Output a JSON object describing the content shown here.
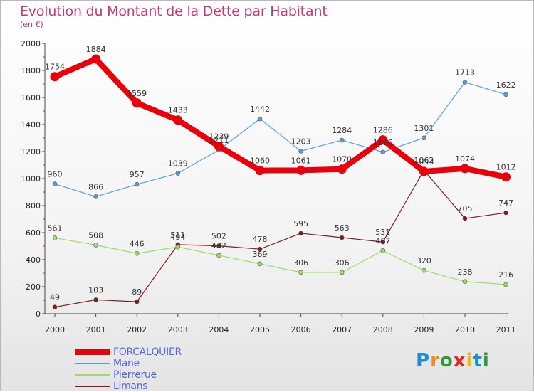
{
  "title": "Evolution du Montant de la Dette par Habitant",
  "unit": "(en €)",
  "logo": {
    "text": "Proxiti",
    "letter_colors": [
      "#1a8fd6",
      "#f08c1c",
      "#2a9a3c",
      "#e8261c",
      "#f0b81c",
      "#1a8fd6",
      "#2a9a3c"
    ]
  },
  "chart_data": {
    "type": "line",
    "x": [
      "2000",
      "2001",
      "2002",
      "2003",
      "2004",
      "2005",
      "2006",
      "2007",
      "2008",
      "2009",
      "2010",
      "2011"
    ],
    "ylim": [
      0,
      2000
    ],
    "yticks": [
      0,
      200,
      400,
      600,
      800,
      1000,
      1200,
      1400,
      1600,
      1800,
      2000
    ],
    "grid": false,
    "legend_position": "bottom-left",
    "series": [
      {
        "name": "FORCALQUIER",
        "color": "#e8000b",
        "values": [
          1754,
          1884,
          1559,
          1433,
          1239,
          1060,
          1061,
          1070,
          1286,
          1053,
          1074,
          1012
        ]
      },
      {
        "name": "Mane",
        "color": "#5a9fd4",
        "values": [
          960,
          866,
          957,
          1039,
          1211,
          1442,
          1203,
          1284,
          1196,
          1301,
          1713,
          1622
        ]
      },
      {
        "name": "Pierrerue",
        "color": "#9ddb6a",
        "values": [
          561,
          508,
          446,
          494,
          432,
          369,
          306,
          306,
          467,
          320,
          238,
          216
        ]
      },
      {
        "name": "Limans",
        "color": "#7a1e1e",
        "values": [
          49,
          103,
          89,
          511,
          502,
          478,
          595,
          563,
          531,
          1062,
          705,
          747
        ]
      }
    ]
  }
}
